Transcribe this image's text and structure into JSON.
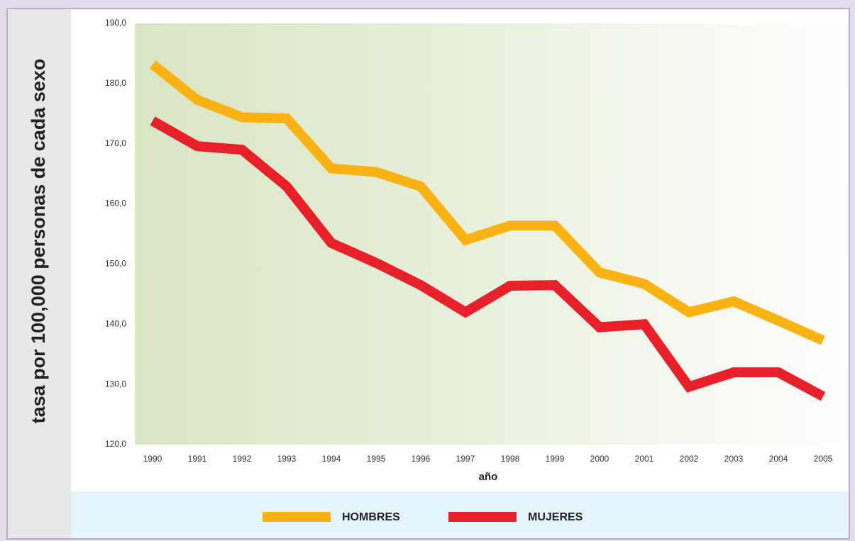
{
  "chart_data": {
    "type": "line",
    "ylabel": "tasa por 100,000 personas de cada sexo",
    "xlabel": "año",
    "categories": [
      "1990",
      "1991",
      "1992",
      "1993",
      "1994",
      "1995",
      "1996",
      "1997",
      "1998",
      "1999",
      "2000",
      "2001",
      "2002",
      "2003",
      "2004",
      "2005"
    ],
    "series": [
      {
        "name": "HOMBRES",
        "color": "#fbb313",
        "values": [
          183.2,
          177.3,
          174.4,
          174.2,
          165.9,
          165.3,
          162.9,
          154.0,
          156.4,
          156.4,
          148.6,
          146.7,
          142.0,
          143.8,
          140.6,
          137.3
        ]
      },
      {
        "name": "MUJERES",
        "color": "#e8202a",
        "values": [
          173.8,
          169.6,
          169.0,
          162.9,
          153.5,
          150.2,
          146.5,
          142.0,
          146.4,
          146.5,
          139.5,
          140.0,
          129.6,
          132.0,
          132.0,
          128.0
        ]
      }
    ],
    "ylim": [
      120,
      190
    ],
    "yticks": [
      {
        "value": 120,
        "label": "120,0"
      },
      {
        "value": 130,
        "label": "130,0"
      },
      {
        "value": 140,
        "label": "140,0"
      },
      {
        "value": 150,
        "label": "150,0"
      },
      {
        "value": 160,
        "label": "160,0"
      },
      {
        "value": 170,
        "label": "170,0"
      },
      {
        "value": 180,
        "label": "180,0"
      },
      {
        "value": 190,
        "label": "190,0"
      }
    ],
    "legend": "bottom"
  }
}
